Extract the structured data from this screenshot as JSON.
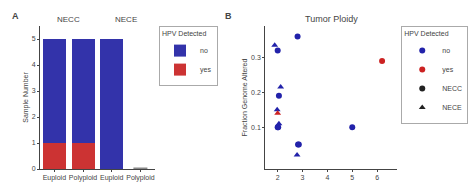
{
  "chart_data": [
    {
      "type": "bar",
      "stacked": true,
      "panel_label": "A",
      "ylabel": "Sample Number",
      "categories": [
        "Euploid",
        "Polyploid",
        "Euploid",
        "Polyploid"
      ],
      "category_groups": [
        "NECC",
        "NECC",
        "NECE",
        "NECE"
      ],
      "legend": "right",
      "legend_title": "HPV Detected",
      "grid": false,
      "ylim": [
        0,
        5.5
      ],
      "yticks": [
        0,
        1,
        2,
        3,
        4,
        5
      ],
      "series": [
        {
          "name": "yes",
          "color": "#cc3333",
          "values": [
            1,
            1,
            0,
            0
          ]
        },
        {
          "name": "no",
          "color": "#3333aa",
          "values": [
            4,
            4,
            5,
            0
          ]
        },
        {
          "type": "scatter",
          "marker": "line-ew",
          "color": "#888888",
          "values": [
            null,
            null,
            null,
            0.03
          ]
        }
      ]
    },
    {
      "type": "scatter",
      "panel_label": "B",
      "title": "Tumor Ploidy",
      "ylabel": "Fraction Genome Altered",
      "xlim": [
        1.5,
        6.8
      ],
      "ylim": [
        -0.02,
        0.39
      ],
      "xticks": [
        2,
        3,
        4,
        5,
        6
      ],
      "yticks": [
        0.1,
        0.2,
        0.3
      ],
      "legend": "right",
      "legend_title": "HPV Detected",
      "grid": false,
      "series": [
        {
          "name": "no",
          "group": "NECC",
          "marker": "circle",
          "color": "#2222aa",
          "x": [
            2.0,
            2.05,
            2.0,
            2.02,
            2.8,
            2.82,
            2.85,
            5.0
          ],
          "values": [
            0.32,
            0.19,
            0.1,
            0.1,
            0.36,
            0.05,
            0.05,
            0.1
          ]
        },
        {
          "name": "yes",
          "group": "NECC",
          "marker": "circle",
          "color": "#cc2222",
          "x": [
            6.2
          ],
          "values": [
            0.29
          ]
        },
        {
          "name": "no",
          "group": "NECE",
          "marker": "triangle-up",
          "color": "#2222aa",
          "x": [
            1.88,
            1.98,
            2.05,
            2.12,
            2.78
          ],
          "values": [
            0.335,
            0.15,
            0.11,
            0.215,
            0.02
          ]
        },
        {
          "name": "yes",
          "group": "NECE",
          "marker": "triangle-up",
          "color": "#cc2222",
          "x": [
            2.0
          ],
          "values": [
            0.14
          ]
        }
      ]
    }
  ]
}
